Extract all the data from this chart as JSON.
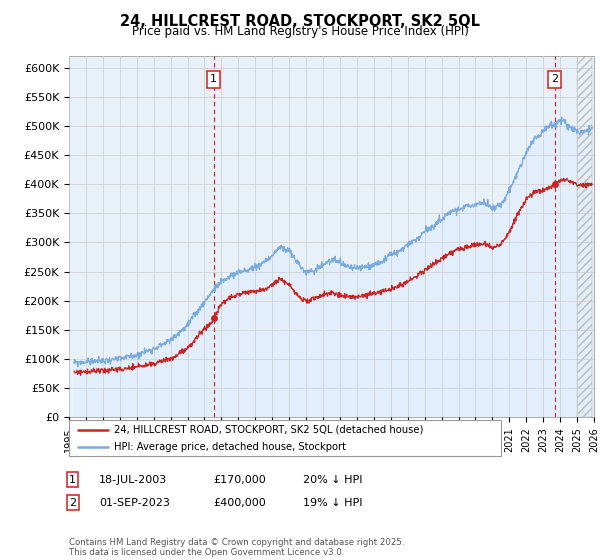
{
  "title1": "24, HILLCREST ROAD, STOCKPORT, SK2 5QL",
  "title2": "Price paid vs. HM Land Registry's House Price Index (HPI)",
  "ylabel_ticks": [
    "£0",
    "£50K",
    "£100K",
    "£150K",
    "£200K",
    "£250K",
    "£300K",
    "£350K",
    "£400K",
    "£450K",
    "£500K",
    "£550K",
    "£600K"
  ],
  "ylim": [
    0,
    620000
  ],
  "xlim_start": 1995.3,
  "xlim_end": 2026.0,
  "legend_line1": "24, HILLCREST ROAD, STOCKPORT, SK2 5QL (detached house)",
  "legend_line2": "HPI: Average price, detached house, Stockport",
  "annotation1_date": "18-JUL-2003",
  "annotation1_price": "£170,000",
  "annotation1_hpi": "20% ↓ HPI",
  "annotation2_date": "01-SEP-2023",
  "annotation2_price": "£400,000",
  "annotation2_hpi": "19% ↓ HPI",
  "footer": "Contains HM Land Registry data © Crown copyright and database right 2025.\nThis data is licensed under the Open Government Licence v3.0.",
  "sale1_x": 2003.54,
  "sale1_y": 170000,
  "sale2_x": 2023.67,
  "sale2_y": 400000,
  "hatch_start": 2025.0,
  "line_color_red": "#cc2222",
  "line_color_blue": "#7aabde",
  "fill_color_blue": "#ddeeff",
  "grid_color": "#cccccc",
  "background_color": "#ffffff",
  "chart_bg": "#e8f0f8",
  "annotation_box_color": "#cc3333"
}
